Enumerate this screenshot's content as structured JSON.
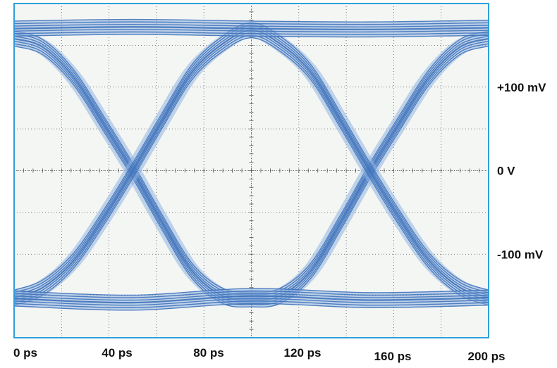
{
  "chart_data": {
    "type": "line",
    "title": "",
    "xlabel": "",
    "ylabel": "",
    "x_ticks": [
      "0 ps",
      "40 ps",
      "80 ps",
      "120 ps",
      "160 ps",
      "200 ps"
    ],
    "y_ticks": [
      "+100 mV",
      "0 V",
      "-100 mV"
    ],
    "xlim": [
      0,
      200
    ],
    "ylim": [
      -200,
      200
    ],
    "x_unit": "ps",
    "y_unit": "mV",
    "grid": true,
    "crossing_points": [
      {
        "t": 50,
        "v": 0
      },
      {
        "t": 150,
        "v": 0
      }
    ],
    "levels": {
      "high": 170,
      "low": -153
    },
    "series": [
      {
        "values": [
          {
            "t": 0,
            "v": 158
          },
          {
            "t": 12,
            "v": 148
          },
          {
            "t": 25,
            "v": 112
          },
          {
            "t": 38,
            "v": 55
          },
          {
            "t": 50,
            "v": 0
          },
          {
            "t": 62,
            "v": -60
          },
          {
            "t": 75,
            "v": -120
          },
          {
            "t": 88,
            "v": -150
          },
          {
            "t": 100,
            "v": -154
          },
          {
            "t": 112,
            "v": -150
          },
          {
            "t": 125,
            "v": -120
          },
          {
            "t": 138,
            "v": -60
          },
          {
            "t": 150,
            "v": 0
          },
          {
            "t": 162,
            "v": 55
          },
          {
            "t": 175,
            "v": 112
          },
          {
            "t": 188,
            "v": 148
          },
          {
            "t": 200,
            "v": 158
          }
        ]
      },
      {
        "values": [
          {
            "t": 0,
            "v": -152
          },
          {
            "t": 12,
            "v": -140
          },
          {
            "t": 25,
            "v": -108
          },
          {
            "t": 38,
            "v": -55
          },
          {
            "t": 50,
            "v": 0
          },
          {
            "t": 62,
            "v": 58
          },
          {
            "t": 75,
            "v": 118
          },
          {
            "t": 88,
            "v": 152
          },
          {
            "t": 100,
            "v": 168
          },
          {
            "t": 112,
            "v": 152
          },
          {
            "t": 125,
            "v": 118
          },
          {
            "t": 138,
            "v": 58
          },
          {
            "t": 150,
            "v": 0
          },
          {
            "t": 162,
            "v": -55
          },
          {
            "t": 175,
            "v": -108
          },
          {
            "t": 188,
            "v": -140
          },
          {
            "t": 200,
            "v": -152
          }
        ]
      },
      {
        "values": [
          {
            "t": 0,
            "v": 170
          },
          {
            "t": 50,
            "v": 172
          },
          {
            "t": 100,
            "v": 170
          },
          {
            "t": 150,
            "v": 169
          },
          {
            "t": 200,
            "v": 171
          }
        ]
      },
      {
        "values": [
          {
            "t": 0,
            "v": -153
          },
          {
            "t": 50,
            "v": -158
          },
          {
            "t": 100,
            "v": -150
          },
          {
            "t": 150,
            "v": -155
          },
          {
            "t": 200,
            "v": -152
          }
        ]
      }
    ],
    "colors": {
      "trace": "#3a6fb8",
      "trace_light": "#8fb3e0",
      "frame": "#2e9fd9",
      "background": "#f4f6f4",
      "grid": "#555555"
    }
  }
}
